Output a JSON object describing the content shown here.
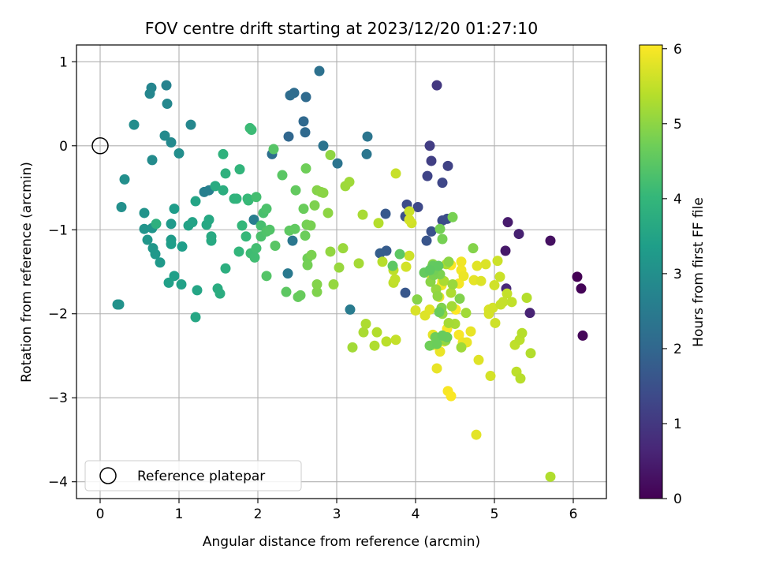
{
  "chart_data": {
    "type": "scatter",
    "title": "FOV centre drift starting at 2023/12/20 01:27:10",
    "xlabel": "Angular distance from reference (arcmin)",
    "ylabel": "Rotation from reference (arcmin)",
    "xlim": [
      -0.3,
      6.42
    ],
    "ylim": [
      -4.2,
      1.2
    ],
    "xticks": [
      0,
      1,
      2,
      3,
      4,
      5,
      6
    ],
    "yticks": [
      1,
      0,
      -1,
      -2,
      -3,
      -4
    ],
    "grid": true,
    "legend": {
      "position": "lower-left",
      "entries": [
        "Reference platepar"
      ]
    },
    "reference_point": {
      "x": 0,
      "y": 0,
      "label": "Reference platepar"
    },
    "colorbar": {
      "label": "Hours from first FF file",
      "range": [
        0,
        6.05
      ],
      "ticks": [
        0,
        1,
        2,
        3,
        4,
        5,
        6
      ],
      "colormap": "viridis",
      "colors": [
        "#440154",
        "#482878",
        "#3e4989",
        "#31688e",
        "#26828e",
        "#1f9e89",
        "#35b779",
        "#6ece58",
        "#b5de2b",
        "#fde725"
      ]
    },
    "points": [
      [
        6.05,
        -1.56,
        0.0
      ],
      [
        6.1,
        -1.7,
        0.05
      ],
      [
        6.12,
        -2.26,
        0.1
      ],
      [
        5.71,
        -1.13,
        0.25
      ],
      [
        5.14,
        -1.25,
        0.4
      ],
      [
        5.17,
        -0.91,
        0.45
      ],
      [
        5.31,
        -1.05,
        0.55
      ],
      [
        5.45,
        -1.99,
        0.6
      ],
      [
        5.15,
        -1.7,
        0.7
      ],
      [
        4.27,
        0.72,
        1.0
      ],
      [
        4.18,
        0.0,
        1.1
      ],
      [
        4.2,
        -0.18,
        1.15
      ],
      [
        4.41,
        -0.24,
        1.2
      ],
      [
        4.15,
        -0.36,
        1.25
      ],
      [
        4.34,
        -0.44,
        1.3
      ],
      [
        4.03,
        -0.73,
        1.35
      ],
      [
        3.89,
        -0.7,
        1.4
      ],
      [
        4.34,
        -0.89,
        1.42
      ],
      [
        4.4,
        -0.87,
        1.45
      ],
      [
        3.87,
        -0.84,
        1.5
      ],
      [
        4.2,
        -1.02,
        1.55
      ],
      [
        4.14,
        -1.13,
        1.6
      ],
      [
        3.87,
        -1.75,
        1.65
      ],
      [
        3.62,
        -0.81,
        1.7
      ],
      [
        3.63,
        -1.25,
        1.75
      ],
      [
        3.55,
        -1.28,
        1.8
      ],
      [
        2.39,
        0.11,
        2.0
      ],
      [
        2.58,
        0.29,
        2.05
      ],
      [
        2.6,
        0.16,
        2.08
      ],
      [
        2.61,
        0.58,
        2.1
      ],
      [
        2.46,
        0.63,
        2.12
      ],
      [
        2.41,
        0.6,
        2.15
      ],
      [
        2.18,
        -0.1,
        2.2
      ],
      [
        2.78,
        0.89,
        2.25
      ],
      [
        2.83,
        0.0,
        2.3
      ],
      [
        3.01,
        -0.21,
        2.32
      ],
      [
        3.39,
        0.11,
        2.35
      ],
      [
        3.38,
        -0.1,
        2.38
      ],
      [
        2.44,
        -1.13,
        2.4
      ],
      [
        2.38,
        -1.52,
        2.45
      ],
      [
        3.17,
        -1.95,
        2.5
      ],
      [
        1.95,
        -0.88,
        2.55
      ],
      [
        1.32,
        -0.55,
        2.6
      ],
      [
        1.38,
        -0.53,
        2.62
      ],
      [
        0.84,
        0.72,
        2.7
      ],
      [
        0.65,
        0.69,
        2.75
      ],
      [
        0.63,
        0.62,
        2.78
      ],
      [
        0.85,
        0.5,
        2.8
      ],
      [
        1.15,
        0.25,
        2.82
      ],
      [
        0.9,
        0.04,
        2.85
      ],
      [
        0.82,
        0.12,
        2.88
      ],
      [
        0.66,
        -0.17,
        2.9
      ],
      [
        0.43,
        0.25,
        2.95
      ],
      [
        1.0,
        -0.09,
        2.97
      ],
      [
        0.31,
        -0.4,
        3.0
      ],
      [
        0.27,
        -0.73,
        3.02
      ],
      [
        0.22,
        -1.89,
        3.05
      ],
      [
        0.24,
        -1.89,
        3.07
      ],
      [
        0.56,
        -0.8,
        3.1
      ],
      [
        0.56,
        -0.99,
        3.12
      ],
      [
        0.66,
        -0.98,
        3.15
      ],
      [
        0.6,
        -1.12,
        3.17
      ],
      [
        0.67,
        -1.22,
        3.2
      ],
      [
        0.7,
        -1.29,
        3.22
      ],
      [
        0.76,
        -1.39,
        3.25
      ],
      [
        0.9,
        -0.93,
        3.27
      ],
      [
        0.9,
        -1.12,
        3.3
      ],
      [
        0.94,
        -0.75,
        3.32
      ],
      [
        1.04,
        -1.2,
        3.35
      ],
      [
        0.9,
        -1.17,
        3.37
      ],
      [
        0.94,
        -1.55,
        3.4
      ],
      [
        0.87,
        -1.63,
        3.42
      ],
      [
        1.03,
        -1.65,
        3.45
      ],
      [
        1.12,
        -0.95,
        3.47
      ],
      [
        1.17,
        -0.91,
        3.5
      ],
      [
        1.21,
        -0.66,
        3.52
      ],
      [
        1.23,
        -1.72,
        3.55
      ],
      [
        1.21,
        -2.04,
        3.57
      ],
      [
        1.35,
        -0.94,
        3.6
      ],
      [
        1.38,
        -0.88,
        3.62
      ],
      [
        1.41,
        -1.13,
        3.65
      ],
      [
        1.41,
        -1.08,
        3.67
      ],
      [
        1.46,
        -0.48,
        3.7
      ],
      [
        1.49,
        -1.7,
        3.72
      ],
      [
        1.52,
        -1.76,
        3.75
      ],
      [
        1.56,
        -0.53,
        3.77
      ],
      [
        1.59,
        -1.46,
        3.8
      ],
      [
        0.71,
        -0.93,
        3.82
      ],
      [
        1.59,
        -0.33,
        3.85
      ],
      [
        1.56,
        -0.1,
        3.88
      ],
      [
        1.7,
        -0.63,
        3.9
      ],
      [
        1.73,
        -0.63,
        3.92
      ],
      [
        1.77,
        -0.28,
        3.95
      ],
      [
        1.76,
        -1.26,
        3.97
      ],
      [
        1.8,
        -0.95,
        4.0
      ],
      [
        1.85,
        -1.08,
        4.02
      ],
      [
        1.87,
        -0.63,
        4.05
      ],
      [
        1.88,
        -0.65,
        4.07
      ],
      [
        1.9,
        0.21,
        4.1
      ],
      [
        1.92,
        0.19,
        4.12
      ],
      [
        1.91,
        -1.28,
        4.15
      ],
      [
        1.96,
        -1.33,
        4.17
      ],
      [
        1.98,
        -1.22,
        4.2
      ],
      [
        1.98,
        -0.61,
        4.22
      ],
      [
        2.04,
        -0.95,
        4.25
      ],
      [
        2.07,
        -0.8,
        4.27
      ],
      [
        2.04,
        -1.08,
        4.3
      ],
      [
        2.11,
        -0.75,
        4.32
      ],
      [
        2.11,
        -1.02,
        4.35
      ],
      [
        2.15,
        -1.0,
        4.37
      ],
      [
        2.11,
        -1.55,
        4.4
      ],
      [
        2.2,
        -0.04,
        4.42
      ],
      [
        2.22,
        -1.19,
        4.45
      ],
      [
        2.31,
        -0.35,
        4.47
      ],
      [
        2.36,
        -1.74,
        4.5
      ],
      [
        2.4,
        -1.01,
        4.52
      ],
      [
        2.47,
        -0.99,
        4.55
      ],
      [
        2.48,
        -0.53,
        4.57
      ],
      [
        2.51,
        -1.8,
        4.6
      ],
      [
        2.54,
        -1.78,
        4.62
      ],
      [
        2.58,
        -0.75,
        4.65
      ],
      [
        2.6,
        -1.07,
        4.67
      ],
      [
        2.61,
        -0.27,
        4.7
      ],
      [
        2.63,
        -1.34,
        4.72
      ],
      [
        2.63,
        -1.42,
        4.75
      ],
      [
        2.62,
        -0.94,
        4.77
      ],
      [
        2.67,
        -0.95,
        4.8
      ],
      [
        2.68,
        -1.3,
        4.82
      ],
      [
        2.72,
        -0.71,
        4.85
      ],
      [
        2.75,
        -1.74,
        4.87
      ],
      [
        2.75,
        -1.65,
        4.9
      ],
      [
        2.75,
        -0.53,
        4.92
      ],
      [
        2.8,
        -0.55,
        4.95
      ],
      [
        2.83,
        -0.56,
        4.97
      ],
      [
        2.89,
        -0.8,
        5.0
      ],
      [
        2.92,
        -0.11,
        5.02
      ],
      [
        2.92,
        -1.26,
        5.05
      ],
      [
        2.96,
        -1.65,
        5.07
      ],
      [
        3.03,
        -1.45,
        5.1
      ],
      [
        3.08,
        -1.22,
        5.12
      ],
      [
        3.11,
        -0.48,
        5.15
      ],
      [
        3.16,
        -0.43,
        5.17
      ],
      [
        3.2,
        -2.4,
        5.2
      ],
      [
        3.28,
        -1.4,
        5.22
      ],
      [
        3.33,
        -0.82,
        5.25
      ],
      [
        3.34,
        -2.22,
        5.27
      ],
      [
        3.37,
        -2.12,
        5.3
      ],
      [
        3.48,
        -2.38,
        5.32
      ],
      [
        3.51,
        -2.22,
        5.35
      ],
      [
        3.53,
        -0.92,
        5.37
      ],
      [
        3.58,
        -1.38,
        5.4
      ],
      [
        3.63,
        -2.33,
        5.42
      ],
      [
        3.72,
        -1.48,
        5.45
      ],
      [
        3.72,
        -1.63,
        5.47
      ],
      [
        3.74,
        -1.59,
        5.5
      ],
      [
        3.75,
        -2.31,
        5.52
      ],
      [
        3.75,
        -0.33,
        5.55
      ],
      [
        3.92,
        -0.78,
        5.57
      ],
      [
        3.92,
        -1.31,
        5.6
      ],
      [
        3.95,
        -0.92,
        5.62
      ],
      [
        3.88,
        -1.44,
        5.65
      ],
      [
        3.92,
        -0.88,
        5.67
      ],
      [
        4.0,
        -1.96,
        5.7
      ],
      [
        4.16,
        -1.51,
        5.72
      ],
      [
        4.12,
        -2.02,
        5.75
      ],
      [
        4.18,
        -1.95,
        5.77
      ],
      [
        4.23,
        -2.37,
        5.8
      ],
      [
        4.22,
        -2.25,
        5.82
      ],
      [
        4.27,
        -2.65,
        5.85
      ],
      [
        4.31,
        -2.45,
        5.87
      ],
      [
        4.3,
        -1.8,
        5.9
      ],
      [
        4.33,
        -1.66,
        5.92
      ],
      [
        4.34,
        -1.61,
        5.94
      ],
      [
        4.36,
        -2.33,
        5.96
      ],
      [
        4.4,
        -2.18,
        5.98
      ],
      [
        4.41,
        -2.92,
        6.0
      ],
      [
        4.45,
        -2.98,
        6.02
      ],
      [
        4.45,
        -1.42,
        6.04
      ],
      [
        4.51,
        -1.95,
        6.05
      ],
      [
        4.55,
        -2.25,
        5.99
      ],
      [
        4.55,
        -1.64,
        5.97
      ],
      [
        4.58,
        -1.48,
        5.95
      ],
      [
        4.58,
        -1.38,
        5.93
      ],
      [
        4.6,
        -2.34,
        5.91
      ],
      [
        4.61,
        -1.55,
        5.89
      ],
      [
        4.65,
        -2.34,
        5.87
      ],
      [
        4.7,
        -2.21,
        5.85
      ],
      [
        4.74,
        -1.6,
        5.83
      ],
      [
        4.77,
        -3.44,
        5.81
      ],
      [
        4.78,
        -1.43,
        5.79
      ],
      [
        4.8,
        -2.55,
        5.77
      ],
      [
        4.83,
        -1.61,
        5.75
      ],
      [
        4.89,
        -1.41,
        5.73
      ],
      [
        4.93,
        -1.95,
        5.71
      ],
      [
        4.93,
        -2.0,
        5.69
      ],
      [
        4.95,
        -2.74,
        5.67
      ],
      [
        4.98,
        -1.93,
        5.65
      ],
      [
        5.0,
        -1.66,
        5.63
      ],
      [
        5.01,
        -2.11,
        5.61
      ],
      [
        5.04,
        -1.37,
        5.59
      ],
      [
        5.07,
        -1.56,
        5.57
      ],
      [
        5.08,
        -1.89,
        5.55
      ],
      [
        5.11,
        -1.86,
        5.53
      ],
      [
        5.16,
        -1.76,
        5.51
      ],
      [
        5.22,
        -1.86,
        5.49
      ],
      [
        5.26,
        -2.37,
        5.47
      ],
      [
        5.28,
        -2.69,
        5.45
      ],
      [
        5.32,
        -2.31,
        5.43
      ],
      [
        5.33,
        -2.77,
        5.41
      ],
      [
        5.35,
        -2.23,
        5.39
      ],
      [
        5.41,
        -1.81,
        5.37
      ],
      [
        5.46,
        -2.47,
        5.35
      ],
      [
        5.71,
        -3.94,
        5.33
      ],
      [
        4.45,
        -1.75,
        5.31
      ],
      [
        4.39,
        -1.41,
        5.29
      ],
      [
        4.36,
        -1.61,
        5.27
      ],
      [
        4.5,
        -2.12,
        5.25
      ],
      [
        4.42,
        -2.11,
        5.23
      ],
      [
        4.46,
        -1.91,
        5.21
      ],
      [
        4.64,
        -1.99,
        5.19
      ],
      [
        4.58,
        -2.4,
        5.17
      ],
      [
        4.25,
        -1.52,
        5.15
      ],
      [
        4.21,
        -1.44,
        5.13
      ],
      [
        4.47,
        -1.65,
        5.11
      ],
      [
        4.26,
        -1.71,
        5.09
      ],
      [
        4.34,
        -2.0,
        5.07
      ],
      [
        4.38,
        -2.32,
        5.05
      ],
      [
        4.28,
        -1.79,
        5.03
      ],
      [
        4.26,
        -1.52,
        5.01
      ],
      [
        4.42,
        -1.38,
        4.99
      ],
      [
        4.19,
        -1.62,
        4.97
      ],
      [
        4.22,
        -1.41,
        4.95
      ],
      [
        4.02,
        -1.83,
        4.93
      ],
      [
        4.73,
        -1.22,
        4.91
      ],
      [
        4.56,
        -1.82,
        4.89
      ],
      [
        4.33,
        -1.93,
        4.87
      ],
      [
        4.25,
        -1.53,
        4.85
      ],
      [
        4.31,
        -1.53,
        4.83
      ],
      [
        4.23,
        -1.54,
        4.81
      ],
      [
        4.47,
        -0.85,
        4.79
      ],
      [
        4.34,
        -1.11,
        4.77
      ],
      [
        4.31,
        -0.99,
        4.75
      ],
      [
        4.23,
        -1.48,
        4.73
      ],
      [
        4.18,
        -2.38,
        4.71
      ],
      [
        4.25,
        -2.28,
        4.69
      ],
      [
        4.27,
        -2.36,
        4.67
      ],
      [
        4.3,
        -1.98,
        4.65
      ],
      [
        4.4,
        -2.28,
        4.63
      ],
      [
        4.34,
        -2.26,
        4.61
      ],
      [
        4.11,
        -1.51,
        4.59
      ],
      [
        4.22,
        -1.43,
        4.57
      ],
      [
        4.29,
        -1.43,
        4.55
      ],
      [
        4.18,
        -1.48,
        4.53
      ],
      [
        3.71,
        -1.43,
        4.51
      ],
      [
        3.8,
        -1.29,
        4.49
      ]
    ]
  }
}
